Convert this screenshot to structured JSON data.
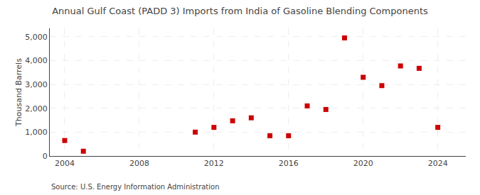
{
  "chart_data": {
    "type": "scatter",
    "title": "Annual Gulf Coast (PADD 3) Imports from India of Gasoline Blending Components",
    "ylabel": "Thousand Barrels",
    "annotations": [
      "Source: U.S. Energy Information Administration"
    ],
    "x": [
      2004,
      2005,
      2011,
      2012,
      2013,
      2014,
      2015,
      2016,
      2017,
      2018,
      2019,
      2020,
      2021,
      2022,
      2023,
      2024
    ],
    "values": [
      650,
      200,
      1000,
      1200,
      1475,
      1600,
      850,
      850,
      2100,
      1950,
      4950,
      3300,
      2950,
      3775,
      3675,
      1200
    ],
    "color": "#cc0000",
    "marker": "square",
    "xlim": [
      2003.2,
      2025.5
    ],
    "xticks": [
      2004,
      2008,
      2012,
      2016,
      2020,
      2024
    ],
    "ylim": [
      0,
      5350
    ],
    "yticks": [
      0,
      {
        "value": 1000,
        "label": "1,000"
      },
      {
        "value": 2000,
        "label": "2,000"
      },
      {
        "value": 3000,
        "label": "3,000"
      },
      {
        "value": 4000,
        "label": "4,000"
      },
      {
        "value": 5000,
        "label": "5,000"
      }
    ],
    "grid": true
  }
}
